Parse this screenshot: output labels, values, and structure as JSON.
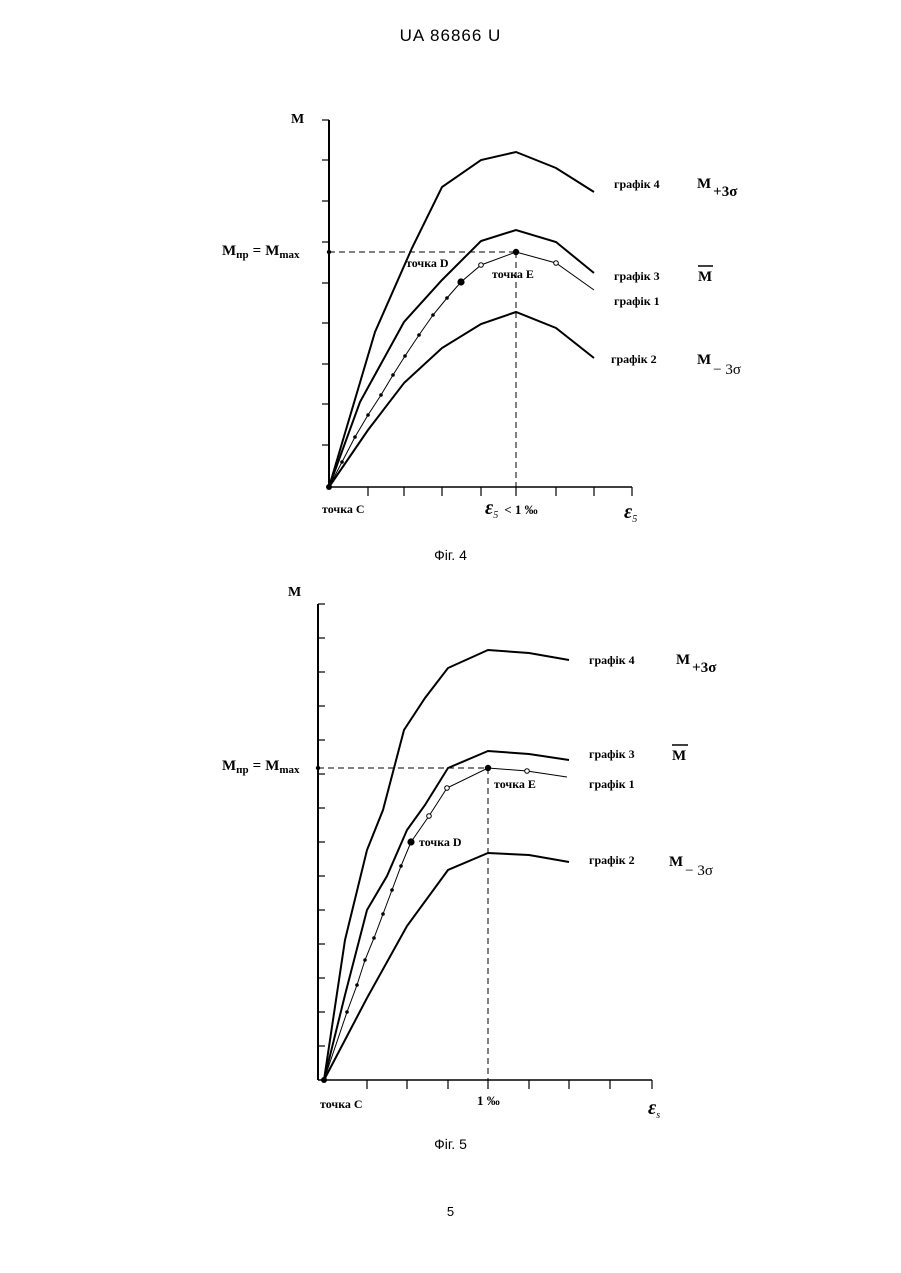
{
  "page": {
    "header": "UA   86866   U",
    "page_number": "5"
  },
  "figures": [
    {
      "caption": "Фіг. 4",
      "y_axis_label": "M",
      "mpr_label": "M",
      "mpr_label_sub": "пр",
      "mpr_eq": "=",
      "mmax_label": "M",
      "mmax_label_sub": "max",
      "origin_label": "точка С",
      "strain_limit_eps": "ε",
      "strain_limit_sub": "5",
      "strain_limit_rest": "< 1 ‰",
      "x_axis_eps": "ε",
      "x_axis_sub": "5",
      "point_d_label": "точка D",
      "point_e_label": "точка E",
      "series_labels": {
        "g4": "графік 4",
        "g3": "графік 3",
        "g1": "графік 1",
        "g2": "графік 2"
      },
      "symbols": {
        "g4_main": "M",
        "g4_sub": "+3σ",
        "g3_main": "M",
        "g2_main": "M",
        "g2_sub": "− 3σ"
      }
    },
    {
      "caption": "Фіг. 5",
      "y_axis_label": "M",
      "mpr_label": "M",
      "mpr_label_sub": "пр",
      "mpr_eq": "=",
      "mmax_label": "M",
      "mmax_label_sub": "max",
      "origin_label": "точка С",
      "strain_limit_text": "1 ‰",
      "x_axis_eps": "ε",
      "x_axis_sub": "s",
      "point_d_label": "точка D",
      "point_e_label": "точка E",
      "series_labels": {
        "g4": "графік 4",
        "g3": "графік 3",
        "g1": "графік 1",
        "g2": "графік 2"
      },
      "symbols": {
        "g4_main": "M",
        "g4_sub": "+3σ",
        "g3_main": "M",
        "g2_main": "M",
        "g2_sub": "− 3σ"
      }
    }
  ]
}
